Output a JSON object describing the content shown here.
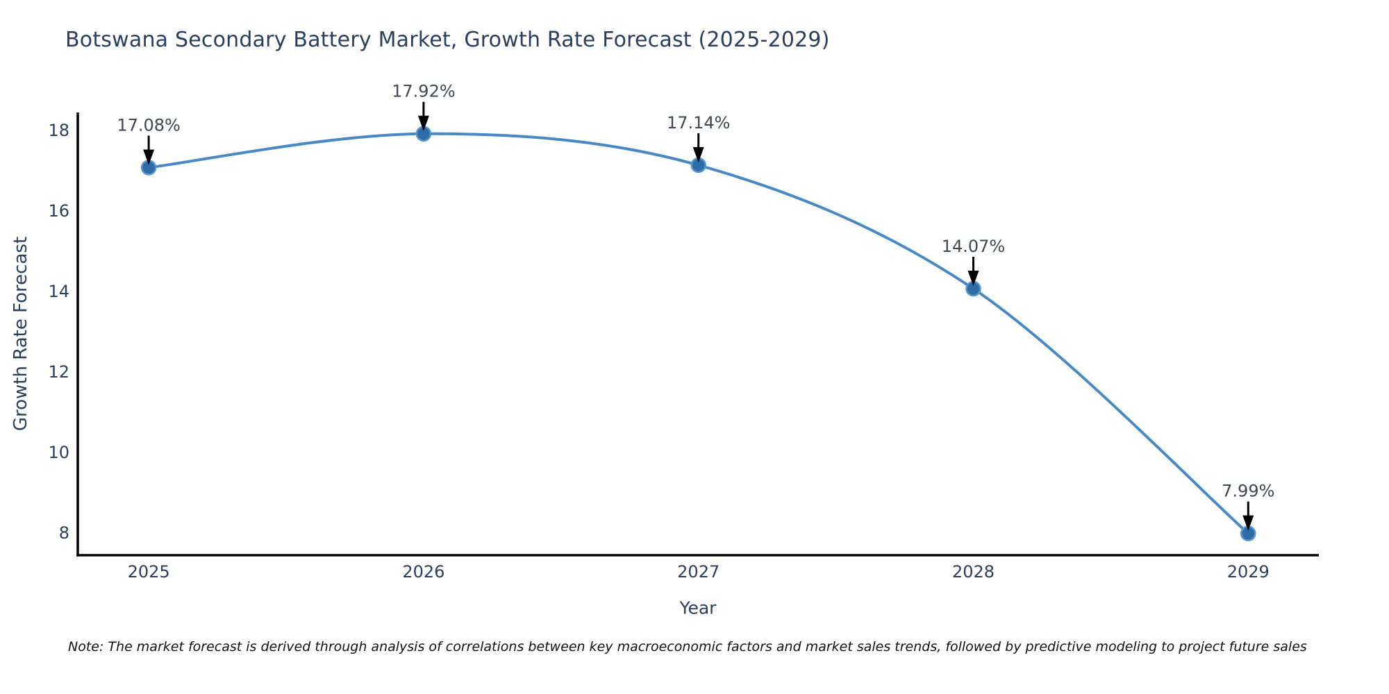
{
  "title": "Botswana Secondary Battery Market, Growth Rate Forecast (2025-2029)",
  "note": "Note: The market forecast is derived through analysis of correlations between key macroeconomic factors and market sales trends, followed by predictive modeling to project future sales",
  "chart_data": {
    "type": "line",
    "title": "Botswana Secondary Battery Market, Growth Rate Forecast (2025-2029)",
    "xlabel": "Year",
    "ylabel": "Growth Rate Forecast",
    "x": [
      2025,
      2026,
      2027,
      2028,
      2029
    ],
    "y": [
      17.08,
      17.92,
      17.14,
      14.07,
      7.99
    ],
    "point_labels": [
      "17.08%",
      "17.92%",
      "17.14%",
      "14.07%",
      "7.99%"
    ],
    "series_name": "Growth Rate Forecast",
    "xticks": [
      "2025",
      "2026",
      "2027",
      "2028",
      "2029"
    ],
    "yticks": [
      8,
      10,
      12,
      14,
      16,
      18
    ],
    "xlim": [
      2024.742,
      2029.257
    ],
    "ylim": [
      7.45,
      18.45
    ],
    "grid": false,
    "legend": false,
    "line_shape": "spline",
    "colors": {
      "line": "#4889c5",
      "marker": "#2f6ba6",
      "marker_edge": "#5795cc",
      "axis": "#000000",
      "title_text": "#2a3f5f",
      "tick_text": "#2a3f5f",
      "annotation_text": "#3f4753",
      "annotation_arrow": "#000000",
      "note_text": "#101010",
      "background": "#ffffff"
    }
  }
}
